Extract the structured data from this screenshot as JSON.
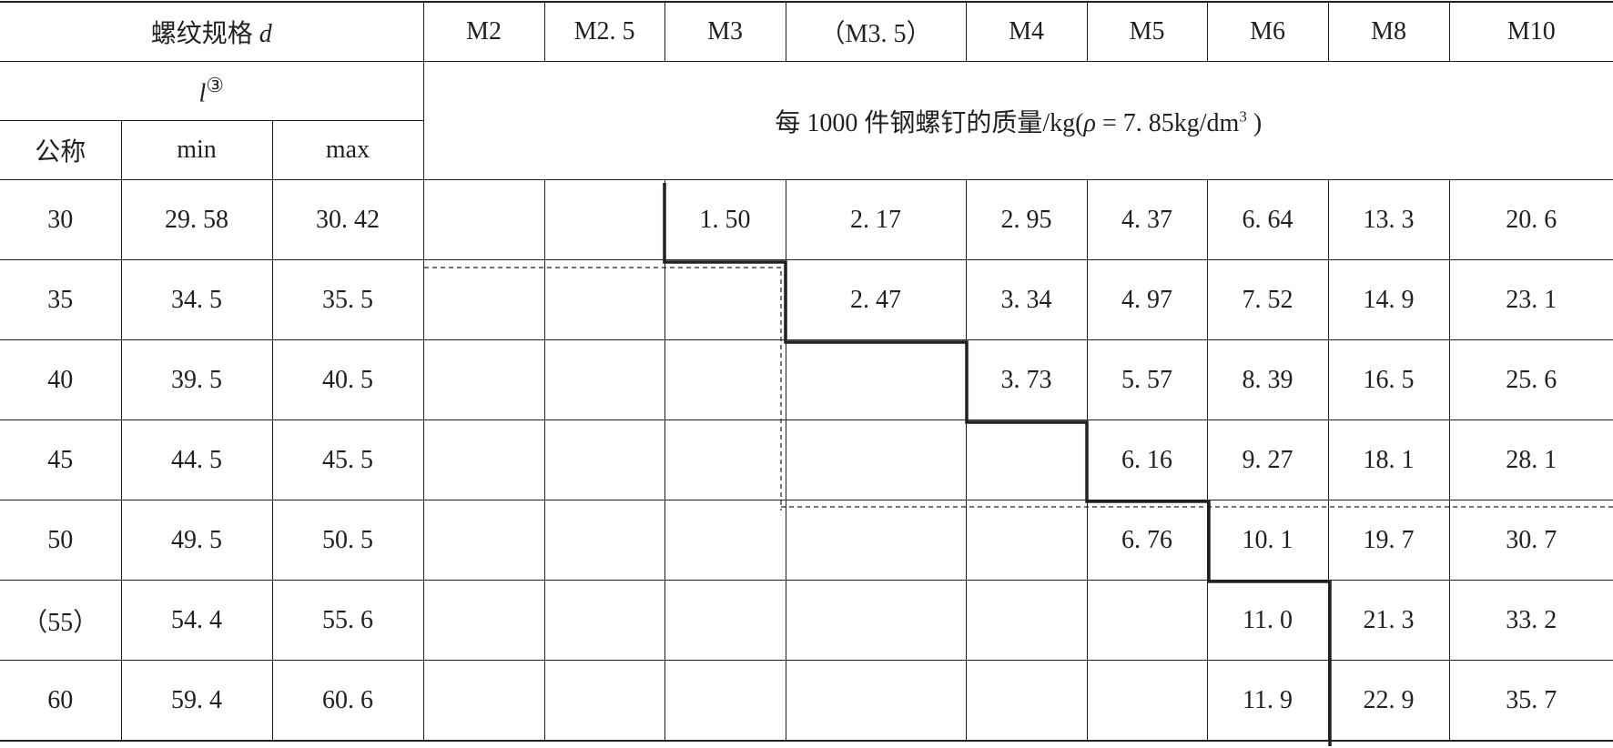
{
  "header": {
    "thread_spec_label": "螺纹规格",
    "thread_spec_symbol": "d",
    "sizes": [
      "M2",
      "M2. 5",
      "M3",
      "（M3. 5）",
      "M4",
      "M5",
      "M6",
      "M8",
      "M10"
    ],
    "length_symbol": "l",
    "length_note": "③",
    "nominal_label": "公称",
    "min_label": "min",
    "max_label": "max",
    "mass_caption": "每 1000 件钢螺钉的质量/kg(",
    "mass_rho": "ρ",
    "mass_eq": " = 7. 85kg/dm",
    "mass_exp": "3",
    "mass_close": " )"
  },
  "rows": [
    {
      "nominal": "30",
      "min": "29. 58",
      "max": "30. 42",
      "mass": [
        "",
        "",
        "1. 50",
        "2. 17",
        "2. 95",
        "4. 37",
        "6. 64",
        "13. 3",
        "20. 6"
      ]
    },
    {
      "nominal": "35",
      "min": "34. 5",
      "max": "35. 5",
      "mass": [
        "",
        "",
        "",
        "2. 47",
        "3. 34",
        "4. 97",
        "7. 52",
        "14. 9",
        "23. 1"
      ]
    },
    {
      "nominal": "40",
      "min": "39. 5",
      "max": "40. 5",
      "mass": [
        "",
        "",
        "",
        "",
        "3. 73",
        "5. 57",
        "8. 39",
        "16. 5",
        "25. 6"
      ]
    },
    {
      "nominal": "45",
      "min": "44. 5",
      "max": "45. 5",
      "mass": [
        "",
        "",
        "",
        "",
        "",
        "6. 16",
        "9. 27",
        "18. 1",
        "28. 1"
      ]
    },
    {
      "nominal": "50",
      "min": "49. 5",
      "max": "50. 5",
      "mass": [
        "",
        "",
        "",
        "",
        "",
        "6. 76",
        "10. 1",
        "19. 7",
        "30. 7"
      ]
    },
    {
      "nominal": "（55）",
      "min": "54. 4",
      "max": "55. 6",
      "mass": [
        "",
        "",
        "",
        "",
        "",
        "",
        "11. 0",
        "21. 3",
        "33. 2"
      ]
    },
    {
      "nominal": "60",
      "min": "59. 4",
      "max": "60. 6",
      "mass": [
        "",
        "",
        "",
        "",
        "",
        "",
        "11. 9",
        "22. 9",
        "35. 7"
      ]
    }
  ],
  "colors": {
    "ink": "#231f20",
    "background": "#ffffff"
  }
}
